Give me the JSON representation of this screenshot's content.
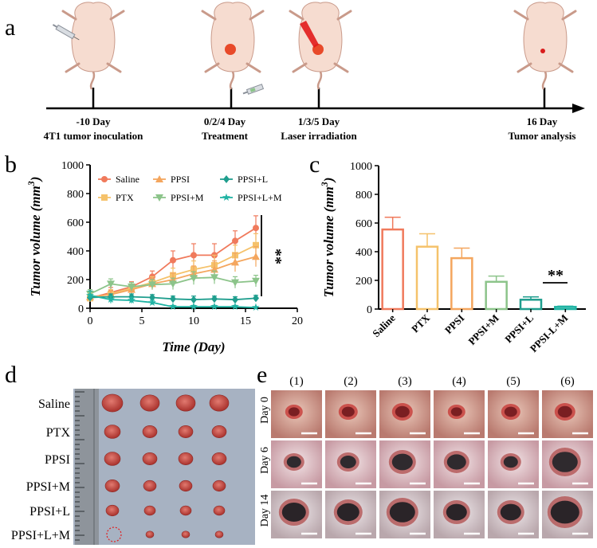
{
  "panel_labels": {
    "a": "a",
    "b": "b",
    "c": "c",
    "d": "d",
    "e": "e"
  },
  "timeline": [
    {
      "day": "-10 Day",
      "event": "4T1 tumor inoculation"
    },
    {
      "day": "0/2/4 Day",
      "event": "Treatment"
    },
    {
      "day": "1/3/5 Day",
      "event": "Laser irradiation"
    },
    {
      "day": "16 Day",
      "event": "Tumor analysis"
    }
  ],
  "colors": {
    "Saline": "#f07a5c",
    "PTX": "#f5c26b",
    "PPSI": "#f4a65e",
    "PPSI+M": "#8cc48a",
    "PPSI+L": "#1f9e8e",
    "PPSI+L+M": "#1fb3a3",
    "axis": "#000000",
    "laser": "#e21b1b",
    "tumor": "#e84a2a"
  },
  "chart_data": [
    {
      "type": "line",
      "xlabel": "Time (Day)",
      "ylabel": "Tumor volume (mm3)",
      "xlim": [
        0,
        20
      ],
      "ylim": [
        0,
        1000
      ],
      "xticks": [
        "0",
        "5",
        "10",
        "15",
        "20"
      ],
      "yticks": [
        "0",
        "200",
        "400",
        "600",
        "800",
        "1000"
      ],
      "x": [
        0,
        2,
        4,
        6,
        8,
        10,
        12,
        14,
        16
      ],
      "significance": "**",
      "series": [
        {
          "name": "Saline",
          "values": [
            70,
            110,
            150,
            220,
            335,
            370,
            370,
            470,
            560
          ],
          "err": [
            25,
            35,
            35,
            40,
            65,
            80,
            80,
            70,
            85
          ]
        },
        {
          "name": "PTX",
          "values": [
            70,
            100,
            140,
            180,
            230,
            270,
            300,
            370,
            440
          ],
          "err": [
            20,
            30,
            30,
            40,
            50,
            60,
            70,
            70,
            80
          ]
        },
        {
          "name": "PPSI",
          "values": [
            80,
            95,
            130,
            170,
            200,
            240,
            270,
            320,
            360
          ],
          "err": [
            20,
            25,
            30,
            40,
            45,
            55,
            60,
            65,
            70
          ]
        },
        {
          "name": "PPSI+M",
          "values": [
            100,
            170,
            150,
            165,
            170,
            210,
            215,
            180,
            190
          ],
          "err": [
            30,
            35,
            30,
            35,
            40,
            45,
            45,
            40,
            40
          ]
        },
        {
          "name": "PPSI+L",
          "values": [
            75,
            80,
            80,
            75,
            65,
            60,
            65,
            60,
            70
          ],
          "err": [
            20,
            20,
            20,
            20,
            20,
            25,
            20,
            20,
            20
          ]
        },
        {
          "name": "PPSI+L+M",
          "values": [
            90,
            60,
            55,
            40,
            10,
            10,
            10,
            10,
            5
          ],
          "err": [
            30,
            25,
            20,
            15,
            10,
            10,
            10,
            10,
            5
          ]
        }
      ],
      "legend": [
        "Saline",
        "PPSI",
        "PPSI+L",
        "PTX",
        "PPSI+M",
        "PPSI+L+M"
      ]
    },
    {
      "type": "bar",
      "ylabel": "Tumor volume (mm3)",
      "ylim": [
        0,
        1000
      ],
      "yticks": [
        "0",
        "200",
        "400",
        "600",
        "800",
        "1000"
      ],
      "categories": [
        "Saline",
        "PTX",
        "PPSI",
        "PPSI+M",
        "PPSI+L",
        "PPSI-L+M"
      ],
      "values": [
        555,
        435,
        355,
        190,
        65,
        15
      ],
      "err": [
        85,
        90,
        70,
        40,
        20,
        5
      ],
      "significance": "**"
    }
  ],
  "photo_d": {
    "rows": [
      "Saline",
      "PTX",
      "PPSI",
      "PPSI+M",
      "PPSI+L",
      "PPSI+L+M"
    ]
  },
  "photo_e": {
    "columns": [
      "(1)",
      "(2)",
      "(3)",
      "(4)",
      "(5)",
      "(6)"
    ],
    "rows": [
      "Day 0",
      "Day 6",
      "Day 14"
    ]
  }
}
